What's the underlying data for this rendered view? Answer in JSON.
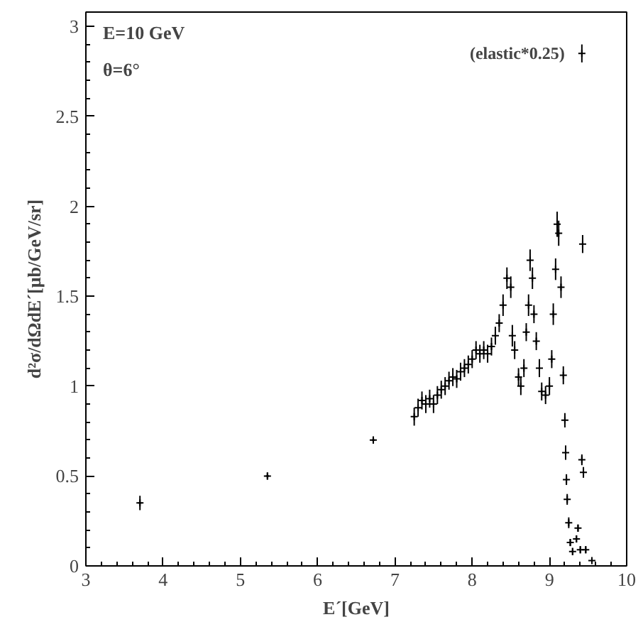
{
  "chart_data": {
    "type": "scatter",
    "xlabel": "E´[GeV]",
    "ylabel": "d²σ/dΩdE´[μb/GeV/sr]",
    "xlim": [
      3,
      10
    ],
    "ylim": [
      0,
      3.08
    ],
    "xticks": [
      3,
      4,
      5,
      6,
      7,
      8,
      9,
      10
    ],
    "yticks": [
      0,
      0.5,
      1,
      1.5,
      2,
      2.5,
      3
    ],
    "grid": false,
    "marker": "cross",
    "annotations": [
      "E=10 GeV",
      "θ=6°",
      {
        "text": "(elastic*0.25)",
        "x": 9.42,
        "y": 2.85
      }
    ],
    "series": [
      {
        "color": "#000000",
        "x": [
          3.7,
          5.35,
          6.72,
          7.25,
          7.3,
          7.35,
          7.4,
          7.45,
          7.5,
          7.55,
          7.6,
          7.65,
          7.7,
          7.75,
          7.8,
          7.85,
          7.9,
          7.95,
          8.0,
          8.05,
          8.1,
          8.15,
          8.2,
          8.25,
          8.3,
          8.35,
          8.4,
          8.45,
          8.5,
          8.52,
          8.55,
          8.6,
          8.63,
          8.67,
          8.7,
          8.73,
          8.75,
          8.78,
          8.8,
          8.83,
          8.87,
          8.9,
          8.95,
          9.0,
          9.03,
          9.05,
          9.08,
          9.1,
          9.12,
          9.15,
          9.18,
          9.2,
          9.21,
          9.22,
          9.23,
          9.25,
          9.27,
          9.3,
          9.35,
          9.37,
          9.4,
          9.42,
          9.43,
          9.44,
          9.47,
          9.55,
          9.42
        ],
        "values": [
          0.35,
          0.5,
          0.7,
          0.83,
          0.88,
          0.92,
          0.9,
          0.93,
          0.9,
          0.95,
          0.98,
          1.0,
          1.03,
          1.05,
          1.04,
          1.08,
          1.1,
          1.12,
          1.15,
          1.2,
          1.18,
          1.2,
          1.18,
          1.22,
          1.28,
          1.35,
          1.45,
          1.6,
          1.55,
          1.28,
          1.2,
          1.05,
          1.0,
          1.1,
          1.3,
          1.45,
          1.7,
          1.6,
          1.4,
          1.25,
          1.1,
          0.97,
          0.95,
          1.0,
          1.15,
          1.4,
          1.65,
          1.9,
          1.85,
          1.55,
          1.06,
          0.81,
          0.63,
          0.48,
          0.37,
          0.24,
          0.13,
          0.08,
          0.15,
          0.21,
          0.09,
          0.59,
          1.79,
          0.52,
          0.09,
          0.03,
          2.85
        ],
        "errors": [
          0.04,
          0.02,
          0.02,
          0.05,
          0.05,
          0.05,
          0.05,
          0.05,
          0.05,
          0.05,
          0.05,
          0.05,
          0.05,
          0.05,
          0.05,
          0.05,
          0.05,
          0.05,
          0.05,
          0.05,
          0.05,
          0.05,
          0.05,
          0.05,
          0.05,
          0.05,
          0.06,
          0.06,
          0.06,
          0.06,
          0.05,
          0.05,
          0.05,
          0.05,
          0.05,
          0.06,
          0.06,
          0.06,
          0.05,
          0.05,
          0.05,
          0.05,
          0.05,
          0.05,
          0.05,
          0.06,
          0.06,
          0.07,
          0.07,
          0.06,
          0.05,
          0.04,
          0.04,
          0.03,
          0.03,
          0.03,
          0.02,
          0.02,
          0.02,
          0.02,
          0.02,
          0.03,
          0.05,
          0.03,
          0.02,
          0.01,
          0.05
        ],
        "xerrors": [
          0.02,
          0.02,
          0.02,
          0.01,
          0.01,
          0.01,
          0.01,
          0.01,
          0.01,
          0.01,
          0.01,
          0.01,
          0.01,
          0.01,
          0.01,
          0.01,
          0.01,
          0.01,
          0.01,
          0.01,
          0.01,
          0.01,
          0.01,
          0.01,
          0.01,
          0.01,
          0.01,
          0.01,
          0.01,
          0.01,
          0.01,
          0.01,
          0.01,
          0.01,
          0.01,
          0.01,
          0.01,
          0.01,
          0.01,
          0.01,
          0.01,
          0.01,
          0.01,
          0.01,
          0.01,
          0.01,
          0.01,
          0.01,
          0.01,
          0.01,
          0.01,
          0.01,
          0.01,
          0.01,
          0.01,
          0.01,
          0.01,
          0.01,
          0.01,
          0.01,
          0.01,
          0.01,
          0.01,
          0.01,
          0.01,
          0.01,
          0.01
        ]
      }
    ]
  }
}
